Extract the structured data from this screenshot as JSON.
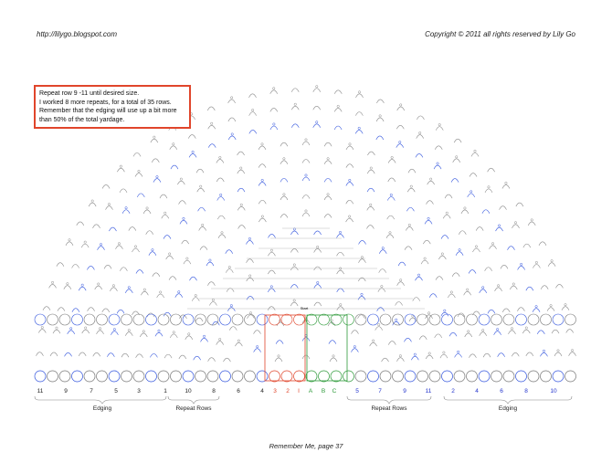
{
  "header": {
    "url": "http://lilygo.blogspot.com",
    "copyright": "Copyright © 2011 all rights reserved by Lily Go"
  },
  "note": [
    "Repeat row 9 -11 until desired size.",
    "I worked 8 more repeats, for a total of 35 rows.",
    "Remember that the edging will use up a bit more",
    "than 50% of the total yardage."
  ],
  "diagram": {
    "start_label": "Start",
    "row_labels": [
      {
        "text": "11",
        "color": "#222222"
      },
      {
        "text": "9",
        "color": "#222222"
      },
      {
        "text": "7",
        "color": "#222222"
      },
      {
        "text": "5",
        "color": "#222222"
      },
      {
        "text": "3",
        "color": "#222222"
      },
      {
        "text": "1",
        "color": "#222222"
      },
      {
        "text": "10",
        "color": "#222222"
      },
      {
        "text": "8",
        "color": "#222222"
      },
      {
        "text": "6",
        "color": "#222222"
      },
      {
        "text": "4",
        "color": "#222222"
      },
      {
        "text": "3",
        "color": "#e0452b"
      },
      {
        "text": "2",
        "color": "#e0452b"
      },
      {
        "text": "I",
        "color": "#e0452b"
      },
      {
        "text": "A",
        "color": "#2e9a3a"
      },
      {
        "text": "B",
        "color": "#2e9a3a"
      },
      {
        "text": "C",
        "color": "#2e9a3a"
      },
      {
        "text": "5",
        "color": "#2233cc"
      },
      {
        "text": "7",
        "color": "#2233cc"
      },
      {
        "text": "9",
        "color": "#2233cc"
      },
      {
        "text": "11",
        "color": "#2233cc"
      },
      {
        "text": "2",
        "color": "#2233cc"
      },
      {
        "text": "4",
        "color": "#2233cc"
      },
      {
        "text": "6",
        "color": "#2233cc"
      },
      {
        "text": "8",
        "color": "#2233cc"
      },
      {
        "text": "10",
        "color": "#2233cc"
      }
    ],
    "groups": [
      "Edging",
      "Repeat Rows",
      "Repeat Rows",
      "Edging"
    ]
  },
  "footer": "Remember Me, page 37"
}
